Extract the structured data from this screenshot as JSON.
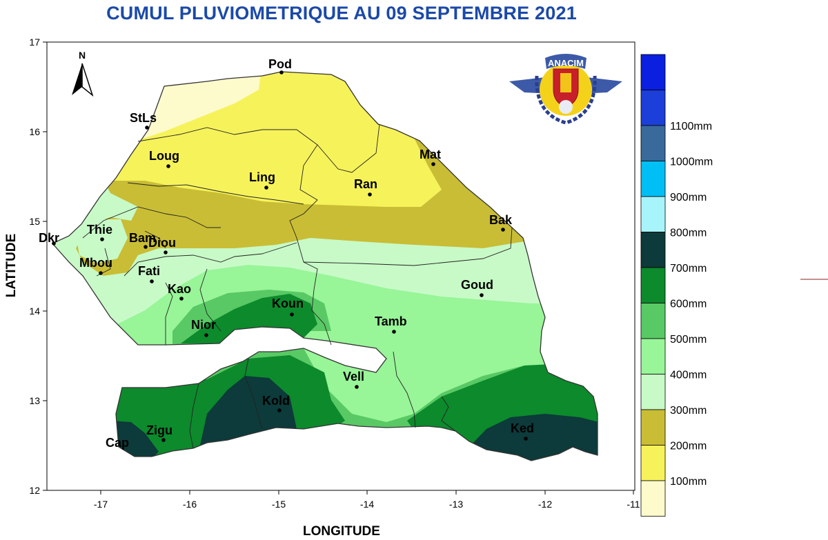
{
  "title": "CUMUL PLUVIOMETRIQUE AU 09 SEPTEMBRE 2021",
  "axes": {
    "x_label": "LONGITUDE",
    "y_label": "LATITUDE",
    "x_ticks": [
      "-17",
      "-16",
      "-15",
      "-14",
      "-13",
      "-12",
      "-11"
    ],
    "y_ticks": [
      "17",
      "16",
      "15",
      "14",
      "13",
      "12"
    ]
  },
  "north_label": "N",
  "logo_text": "ANACIM",
  "cities": [
    {
      "name": "Pod"
    },
    {
      "name": "StLs"
    },
    {
      "name": "Loug"
    },
    {
      "name": "Ling"
    },
    {
      "name": "Mat"
    },
    {
      "name": "Ran"
    },
    {
      "name": "Bak"
    },
    {
      "name": "Dkr"
    },
    {
      "name": "Thie"
    },
    {
      "name": "Bam"
    },
    {
      "name": "Diou"
    },
    {
      "name": "Mbou"
    },
    {
      "name": "Fati"
    },
    {
      "name": "Kao"
    },
    {
      "name": "Goud"
    },
    {
      "name": "Koun"
    },
    {
      "name": "Tamb"
    },
    {
      "name": "Nior"
    },
    {
      "name": "Vell"
    },
    {
      "name": "Kold"
    },
    {
      "name": "Zigu"
    },
    {
      "name": "Cap"
    },
    {
      "name": "Ked"
    }
  ],
  "legend": [
    {
      "label": "",
      "color": "#0a1fe0"
    },
    {
      "label": "1100mm",
      "color": "#1b3fd8"
    },
    {
      "label": "1000mm",
      "color": "#3a6a9c"
    },
    {
      "label": "900mm",
      "color": "#00bff5"
    },
    {
      "label": "800mm",
      "color": "#a8f4fb"
    },
    {
      "label": "700mm",
      "color": "#0d3a3a"
    },
    {
      "label": "600mm",
      "color": "#0c8a2c"
    },
    {
      "label": "500mm",
      "color": "#58c964"
    },
    {
      "label": "400mm",
      "color": "#98f598"
    },
    {
      "label": "300mm",
      "color": "#c8fac8"
    },
    {
      "label": "200mm",
      "color": "#c9bd35"
    },
    {
      "label": "100mm",
      "color": "#f6f25a"
    },
    {
      "label": "",
      "color": "#fdfbcb"
    }
  ]
}
